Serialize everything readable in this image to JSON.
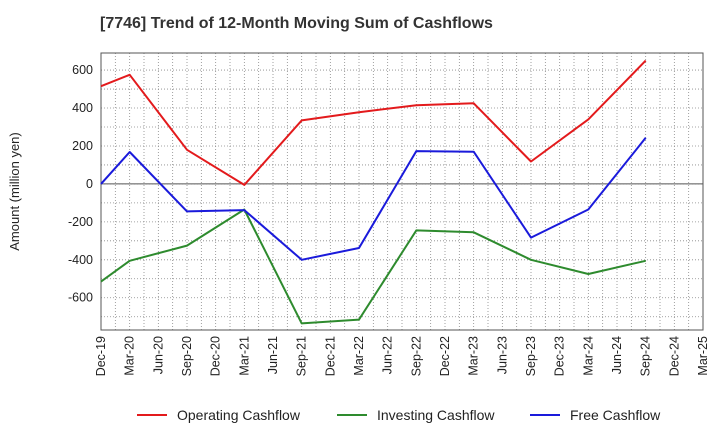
{
  "chart_data": {
    "type": "line",
    "title": "[7746]  Trend of 12-Month Moving Sum of Cashflows",
    "xlabel": "",
    "ylabel": "Amount (million yen)",
    "ylim": [
      -770,
      690
    ],
    "yticks": [
      600,
      400,
      200,
      0,
      -200,
      -400,
      -600
    ],
    "grid": true,
    "legend_position": "bottom",
    "categories": [
      "Dec-19",
      "Mar-20",
      "Jun-20",
      "Sep-20",
      "Dec-20",
      "Mar-21",
      "Jun-21",
      "Sep-21",
      "Dec-21",
      "Mar-22",
      "Jun-22",
      "Sep-22",
      "Dec-22",
      "Mar-23",
      "Jun-23",
      "Sep-23",
      "Dec-23",
      "Mar-24",
      "Jun-24",
      "Sep-24",
      "Dec-24",
      "Mar-25"
    ],
    "series": [
      {
        "name": "Operating Cashflow",
        "color": "#e31a1c",
        "values": [
          515,
          575,
          null,
          180,
          null,
          -5,
          null,
          335,
          null,
          378,
          null,
          415,
          null,
          425,
          null,
          118,
          null,
          340,
          null,
          650,
          null,
          null
        ]
      },
      {
        "name": "Investing Cashflow",
        "color": "#2e8b2e",
        "values": [
          -515,
          -405,
          null,
          -325,
          null,
          -135,
          null,
          -735,
          null,
          -715,
          null,
          -245,
          null,
          -255,
          null,
          -400,
          null,
          -475,
          null,
          -405,
          null,
          null
        ]
      },
      {
        "name": "Free Cashflow",
        "color": "#1a1adb",
        "values": [
          0,
          168,
          null,
          -145,
          null,
          -138,
          null,
          -400,
          null,
          -338,
          null,
          173,
          null,
          170,
          null,
          -283,
          null,
          -135,
          null,
          243,
          null,
          null
        ]
      }
    ]
  }
}
